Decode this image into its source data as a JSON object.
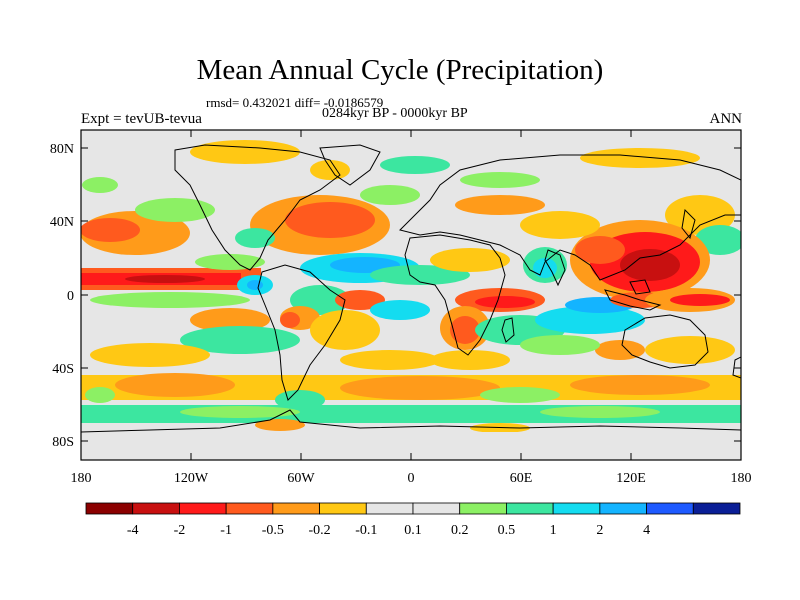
{
  "header": {
    "title": "Mean Annual Cycle (Precipitation)",
    "stats": "rmsd= 0.432021 diff= -0.0186579",
    "period": "0284kyr BP - 0000kyr BP",
    "experiment": "Expt = tevUB-tevua",
    "season": "ANN"
  },
  "axes": {
    "lat_labels": [
      "80N",
      "40N",
      "0",
      "40S",
      "80S"
    ],
    "lon_labels": [
      "180",
      "120W",
      "60W",
      "0",
      "60E",
      "120E",
      "180"
    ]
  },
  "colorbar": {
    "colors": [
      "#8b0000",
      "#c81010",
      "#ff1a1a",
      "#ff5a1e",
      "#ff9b1a",
      "#ffc814",
      "#e6e6e6",
      "#e6e6e6",
      "#8cf064",
      "#3ce6a0",
      "#14dcf0",
      "#14b4ff",
      "#1e5aff",
      "#0a1e96"
    ],
    "labels": [
      "-4",
      "-2",
      "-1",
      "-0.5",
      "-0.2",
      "-0.1",
      "0.1",
      "0.2",
      "0.5",
      "1",
      "2",
      "4"
    ]
  },
  "colors": {
    "ocean_land_background": "#e6e6e6",
    "coastline": "#000000"
  }
}
